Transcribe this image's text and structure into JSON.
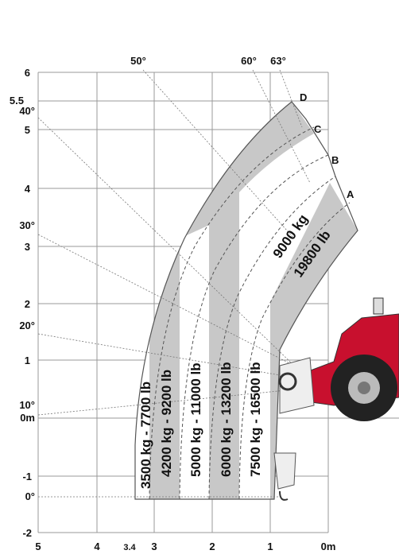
{
  "axes": {
    "y_labels": [
      "6",
      "5.5",
      "40°",
      "5",
      "4",
      "30°",
      "3",
      "2",
      "20°",
      "1",
      "10°",
      "0m",
      "-1",
      "0°",
      "-2"
    ],
    "x_labels": [
      "5",
      "4",
      "3.4",
      "3",
      "2",
      "1",
      "0m"
    ],
    "top_labels": [
      "50°",
      "60°",
      "63°"
    ]
  },
  "points": [
    "D",
    "C",
    "B",
    "A"
  ],
  "loads": [
    "3500 kg - 7700 lb",
    "4200 kg - 9200 lb",
    "5000 kg - 11000 lb",
    "6000 kg - 13200 lb",
    "7500 kg - 16500 lb"
  ],
  "max_load": [
    "9000 kg",
    "19800 lb"
  ]
}
